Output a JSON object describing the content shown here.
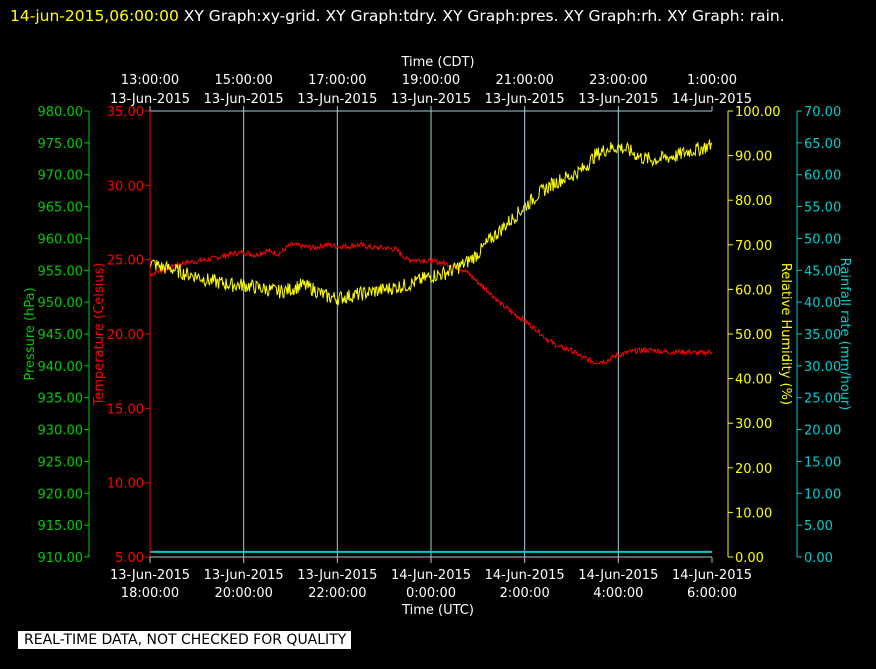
{
  "header": {
    "timestamp": "14-jun-2015,06:00:00",
    "graphs": "XY Graph:xy-grid.  XY Graph:tdry.  XY Graph:pres.  XY Graph:rh.  XY Graph: rain."
  },
  "notice": "REAL-TIME DATA, NOT CHECKED FOR QUALITY",
  "colors": {
    "background": "#000000",
    "grid": "#9ecfdc",
    "pressure": "#00cc00",
    "temperature": "#ff0000",
    "humidity": "#ffff00",
    "rain": "#00cccc"
  },
  "chart_data": {
    "type": "line",
    "top_axis": {
      "title": "Time (CDT)",
      "ticks": [
        {
          "time": "13:00:00",
          "date": "13-Jun-2015"
        },
        {
          "time": "15:00:00",
          "date": "13-Jun-2015"
        },
        {
          "time": "17:00:00",
          "date": "13-Jun-2015"
        },
        {
          "time": "19:00:00",
          "date": "13-Jun-2015"
        },
        {
          "time": "21:00:00",
          "date": "13-Jun-2015"
        },
        {
          "time": "23:00:00",
          "date": "13-Jun-2015"
        },
        {
          "time": "1:00:00",
          "date": "14-Jun-2015"
        }
      ]
    },
    "bottom_axis": {
      "title": "Time (UTC)",
      "ticks": [
        {
          "date": "13-Jun-2015",
          "time": "18:00:00"
        },
        {
          "date": "13-Jun-2015",
          "time": "20:00:00"
        },
        {
          "date": "13-Jun-2015",
          "time": "22:00:00"
        },
        {
          "date": "14-Jun-2015",
          "time": "0:00:00"
        },
        {
          "date": "14-Jun-2015",
          "time": "2:00:00"
        },
        {
          "date": "14-Jun-2015",
          "time": "4:00:00"
        },
        {
          "date": "14-Jun-2015",
          "time": "6:00:00"
        }
      ],
      "range_hours_utc": [
        18,
        30
      ]
    },
    "axes": {
      "pressure": {
        "label": "Pressure (hPa)",
        "range": [
          910,
          980
        ],
        "ticks": [
          "910.00",
          "915.00",
          "920.00",
          "925.00",
          "930.00",
          "935.00",
          "940.00",
          "945.00",
          "950.00",
          "955.00",
          "960.00",
          "965.00",
          "970.00",
          "975.00",
          "980.00"
        ]
      },
      "temperature": {
        "label": "Temperature (Celsius)",
        "range": [
          5,
          35
        ],
        "ticks": [
          "5.00",
          "10.00",
          "15.00",
          "20.00",
          "25.00",
          "30.00",
          "35.00"
        ]
      },
      "humidity": {
        "label": "Relative Humidity (%)",
        "range": [
          0,
          100
        ],
        "ticks": [
          "0.00",
          "10.00",
          "20.00",
          "30.00",
          "40.00",
          "50.00",
          "60.00",
          "70.00",
          "80.00",
          "90.00",
          "100.00"
        ]
      },
      "rain": {
        "label": "Rainfall rate (mm/hour)",
        "range": [
          0,
          70
        ],
        "ticks": [
          "0.00",
          "5.00",
          "10.00",
          "15.00",
          "20.00",
          "25.00",
          "30.00",
          "35.00",
          "40.00",
          "45.00",
          "50.00",
          "55.00",
          "60.00",
          "65.00",
          "70.00"
        ]
      }
    },
    "series": [
      {
        "key": "temperature",
        "x": [
          18.0,
          18.25,
          18.5,
          18.75,
          19.0,
          19.25,
          19.5,
          19.75,
          20.0,
          20.25,
          20.5,
          20.75,
          21.0,
          21.25,
          21.5,
          21.75,
          22.0,
          22.25,
          22.5,
          22.75,
          23.0,
          23.25,
          23.5,
          23.75,
          24.0,
          24.25,
          24.5,
          24.75,
          25.0,
          25.25,
          25.5,
          25.75,
          26.0,
          26.25,
          26.5,
          26.75,
          27.0,
          27.25,
          27.5,
          27.75,
          28.0,
          28.25,
          28.5,
          28.75,
          29.0,
          29.25,
          29.5,
          29.75,
          30.0
        ],
        "y": [
          24.0,
          24.3,
          24.6,
          24.8,
          24.9,
          25.0,
          25.2,
          25.4,
          25.5,
          25.3,
          25.6,
          25.4,
          26.0,
          25.9,
          25.8,
          26.0,
          25.9,
          25.9,
          26.0,
          25.8,
          25.8,
          25.7,
          25.0,
          25.0,
          24.9,
          24.8,
          24.6,
          24.2,
          23.5,
          22.8,
          22.0,
          21.4,
          20.9,
          20.3,
          19.6,
          19.1,
          18.9,
          18.4,
          18.1,
          18.2,
          18.6,
          18.8,
          18.9,
          18.9,
          18.8,
          18.8,
          18.8,
          18.7,
          18.8
        ]
      },
      {
        "key": "humidity",
        "x": [
          18.0,
          18.25,
          18.5,
          18.75,
          19.0,
          19.25,
          19.5,
          19.75,
          20.0,
          20.25,
          20.5,
          20.75,
          21.0,
          21.25,
          21.5,
          21.75,
          22.0,
          22.25,
          22.5,
          22.75,
          23.0,
          23.25,
          23.5,
          23.75,
          24.0,
          24.25,
          24.5,
          24.75,
          25.0,
          25.25,
          25.5,
          25.75,
          26.0,
          26.25,
          26.5,
          26.75,
          27.0,
          27.25,
          27.5,
          27.75,
          28.0,
          28.25,
          28.5,
          28.75,
          29.0,
          29.25,
          29.5,
          29.75,
          30.0
        ],
        "y": [
          66.0,
          65.0,
          64.5,
          63.5,
          63.0,
          62.0,
          61.5,
          61.0,
          61.0,
          60.5,
          60.0,
          59.5,
          60.0,
          61.0,
          60.0,
          58.5,
          58.0,
          58.5,
          59.0,
          59.5,
          60.0,
          60.5,
          61.0,
          62.0,
          63.0,
          63.5,
          64.5,
          66.0,
          68.0,
          71.0,
          73.5,
          76.0,
          78.5,
          81.0,
          83.0,
          84.5,
          85.5,
          87.0,
          90.0,
          91.5,
          92.0,
          91.0,
          89.5,
          89.0,
          89.5,
          90.0,
          91.0,
          91.5,
          92.5
        ]
      },
      {
        "key": "rain",
        "x": [
          18.0,
          30.0
        ],
        "y": [
          0.8,
          0.8
        ]
      }
    ]
  }
}
